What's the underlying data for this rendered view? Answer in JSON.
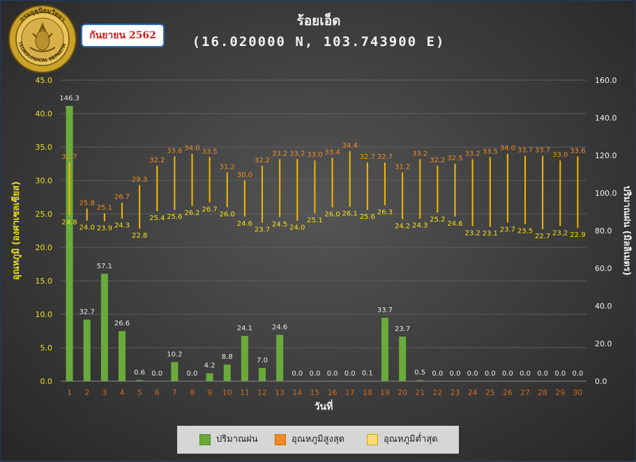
{
  "header": {
    "title": "ร้อยเอ็ด",
    "subtitle": "(16.020000 N, 103.743900 E)",
    "month_badge": "กันยายน 2562",
    "logo_text": "กรมอุตุนิยมวิทยา METEOROLOGICAL DEPARTMENT"
  },
  "legend": {
    "rain": "ปริมาณฝน",
    "tmax": "อุณหภูมิสูงสุด",
    "tmin": "อุณหภูมิต่ำสุด"
  },
  "colors": {
    "rain": "#6aaa3a",
    "tmax_label": "#f08a24",
    "tmin_label": "#f5e214",
    "range_line": "#f5b800",
    "left_axis": "#e8e028",
    "right_axis": "#f2f2f2",
    "x_tick": "#d2691e"
  },
  "chart_data": {
    "type": "bar",
    "xlabel": "วันที่",
    "ylabel_left": "อุณหภูมิ (องศาเซลเซียส)",
    "ylabel_right": "ปริมาณฝน (มิลลิเมตร)",
    "ylim_left": [
      0,
      45
    ],
    "yticks_left": [
      "0.0",
      "5.0",
      "10.0",
      "15.0",
      "20.0",
      "25.0",
      "30.0",
      "35.0",
      "40.0",
      "45.0"
    ],
    "ylim_right": [
      0,
      160
    ],
    "yticks_right": [
      "0.0",
      "20.0",
      "40.0",
      "60.0",
      "80.0",
      "100.0",
      "120.0",
      "140.0",
      "160.0"
    ],
    "grid": true,
    "legend_position": "bottom",
    "categories": [
      "1",
      "2",
      "3",
      "4",
      "5",
      "6",
      "7",
      "8",
      "9",
      "10",
      "11",
      "12",
      "13",
      "14",
      "15",
      "16",
      "17",
      "18",
      "19",
      "20",
      "21",
      "22",
      "23",
      "24",
      "25",
      "26",
      "27",
      "28",
      "29",
      "30"
    ],
    "series": [
      {
        "name": "ปริมาณฝน",
        "axis": "right",
        "type": "bar",
        "values": [
          146.3,
          32.7,
          57.1,
          26.6,
          0.6,
          0.0,
          10.2,
          0.0,
          4.2,
          8.8,
          24.1,
          7.0,
          24.6,
          0.0,
          0.0,
          0.0,
          0.0,
          0.1,
          33.7,
          23.7,
          0.5,
          0.0,
          0.0,
          0.0,
          0.0,
          0.0,
          0.0,
          0.0,
          0.0,
          0.0
        ]
      },
      {
        "name": "อุณหภูมิสูงสุด",
        "axis": "left",
        "type": "range-high",
        "values": [
          32.7,
          25.8,
          25.1,
          26.7,
          29.3,
          32.2,
          33.6,
          34.0,
          33.5,
          31.2,
          30.0,
          32.2,
          33.2,
          33.2,
          33.0,
          33.4,
          34.4,
          32.7,
          32.7,
          31.2,
          33.2,
          32.2,
          32.5,
          33.2,
          33.5,
          34.0,
          33.7,
          33.7,
          33.0,
          33.6
        ]
      },
      {
        "name": "อุณหภูมิต่ำสุด",
        "axis": "left",
        "type": "range-low",
        "values": [
          24.8,
          24.0,
          23.9,
          24.3,
          22.8,
          25.4,
          25.6,
          26.2,
          26.7,
          26.0,
          24.6,
          23.7,
          24.5,
          24.0,
          25.1,
          26.0,
          26.1,
          25.6,
          26.3,
          24.2,
          24.3,
          25.2,
          24.6,
          23.2,
          23.1,
          23.7,
          23.5,
          22.7,
          23.2,
          22.9
        ]
      }
    ]
  }
}
